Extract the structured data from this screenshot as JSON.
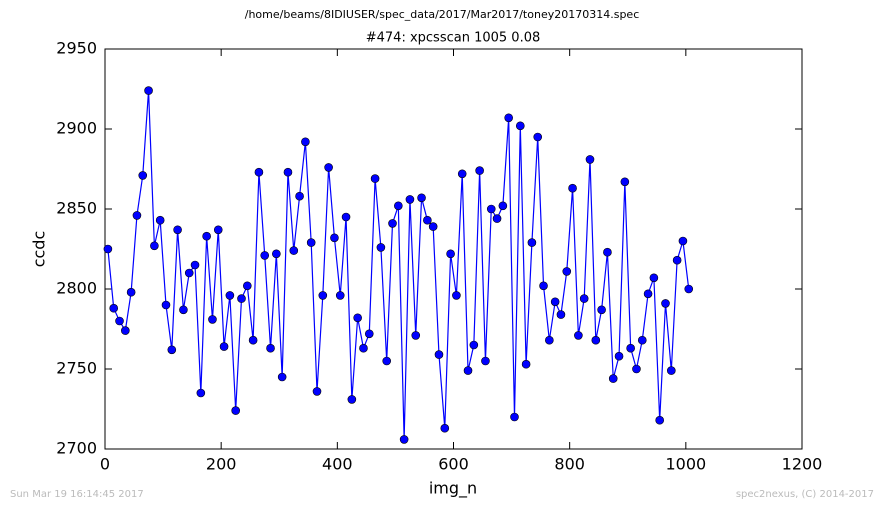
{
  "chart_data": {
    "type": "line",
    "title": "/home/beams/8IDIUSER/spec_data/2017/Mar2017/toney20170314.spec",
    "subtitle": "#474: xpcsscan 1005 0.08",
    "xlabel": "img_n",
    "ylabel": "ccdc",
    "footer_left": "Sun Mar 19 16:14:45 2017",
    "footer_right": "spec2nexus, (C) 2014-2017",
    "x": [
      5,
      15,
      25,
      35,
      45,
      55,
      65,
      75,
      85,
      95,
      105,
      115,
      125,
      135,
      145,
      155,
      165,
      175,
      185,
      195,
      205,
      215,
      225,
      235,
      245,
      255,
      265,
      275,
      285,
      295,
      305,
      315,
      325,
      335,
      345,
      355,
      365,
      375,
      385,
      395,
      405,
      415,
      425,
      435,
      445,
      455,
      465,
      475,
      485,
      495,
      505,
      515,
      525,
      535,
      545,
      555,
      565,
      575,
      585,
      595,
      605,
      615,
      625,
      635,
      645,
      655,
      665,
      675,
      685,
      695,
      705,
      715,
      725,
      735,
      745,
      755,
      765,
      775,
      785,
      795,
      805,
      815,
      825,
      835,
      845,
      855,
      865,
      875,
      885,
      895,
      905,
      915,
      925,
      935,
      945,
      955,
      965,
      975,
      985,
      995,
      1005
    ],
    "series": [
      {
        "name": "ccdc",
        "color": "#0000ff",
        "values": [
          2825,
          2788,
          2780,
          2774,
          2798,
          2846,
          2871,
          2924,
          2827,
          2843,
          2790,
          2762,
          2837,
          2787,
          2810,
          2815,
          2735,
          2833,
          2781,
          2837,
          2764,
          2796,
          2724,
          2794,
          2802,
          2768,
          2873,
          2821,
          2763,
          2822,
          2745,
          2873,
          2824,
          2858,
          2892,
          2829,
          2736,
          2796,
          2876,
          2832,
          2796,
          2845,
          2731,
          2782,
          2763,
          2772,
          2869,
          2826,
          2755,
          2841,
          2852,
          2706,
          2856,
          2771,
          2857,
          2843,
          2839,
          2759,
          2713,
          2822,
          2796,
          2872,
          2749,
          2765,
          2874,
          2755,
          2850,
          2844,
          2852,
          2907,
          2720,
          2902,
          2753,
          2829,
          2895,
          2802,
          2768,
          2792,
          2784,
          2811,
          2863,
          2771,
          2794,
          2881,
          2768,
          2787,
          2823,
          2744,
          2758,
          2867,
          2763,
          2750,
          2768,
          2797,
          2807,
          2718,
          2791,
          2749,
          2818,
          2830,
          2800
        ]
      }
    ],
    "xlim": [
      0,
      1200
    ],
    "xticks": [
      0,
      200,
      400,
      600,
      800,
      1000,
      1200
    ],
    "ylim": [
      2700,
      2950
    ],
    "yticks": [
      2700,
      2750,
      2800,
      2850,
      2900,
      2950
    ],
    "grid": false
  }
}
